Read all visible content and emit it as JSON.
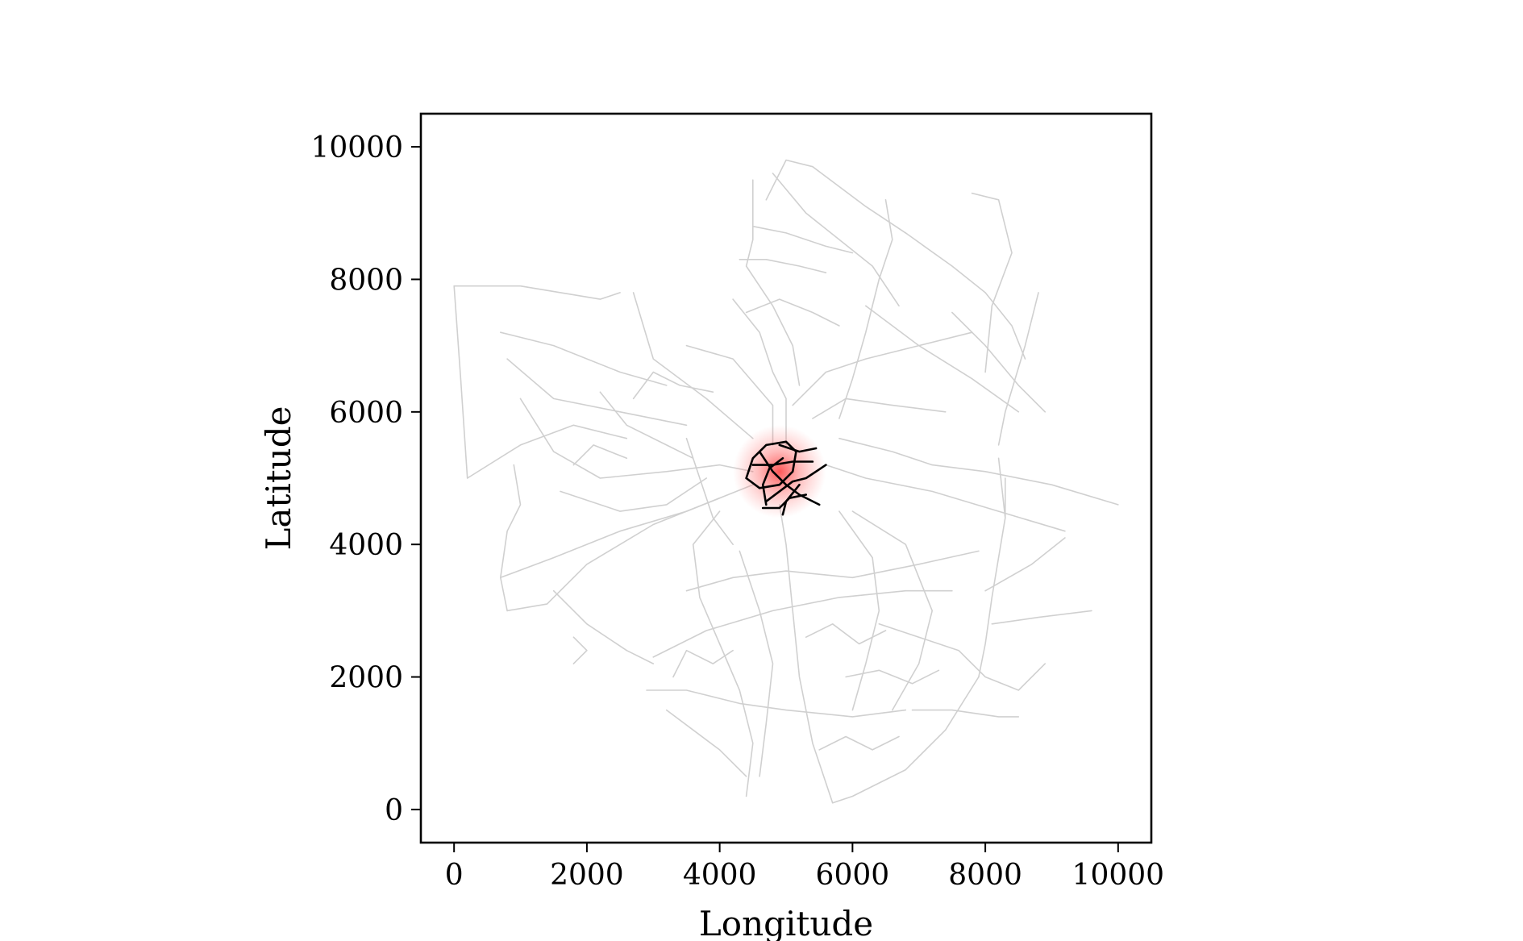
{
  "chart_data": {
    "type": "map",
    "xlabel": "Longitude",
    "ylabel": "Latitude",
    "xlim": [
      -500,
      10500
    ],
    "ylim": [
      -500,
      10500
    ],
    "x_ticks": [
      0,
      2000,
      4000,
      6000,
      8000,
      10000
    ],
    "y_ticks": [
      0,
      2000,
      4000,
      6000,
      8000,
      10000
    ],
    "x_tick_labels": [
      "0",
      "2000",
      "4000",
      "6000",
      "8000",
      "10000"
    ],
    "y_tick_labels": [
      "0",
      "2000",
      "4000",
      "6000",
      "8000",
      "10000"
    ],
    "grid": false,
    "colors": {
      "network": "#d0d0d0",
      "highlight": "#000000",
      "density": "#ff3030"
    },
    "density_center": [
      4900,
      5100
    ],
    "density_radius": 700,
    "network_lines": [
      [
        [
          0,
          7900
        ],
        [
          500,
          7900
        ],
        [
          1000,
          7900
        ],
        [
          2200,
          7700
        ],
        [
          2500,
          7800
        ]
      ],
      [
        [
          0,
          7900
        ],
        [
          100,
          6500
        ],
        [
          200,
          5000
        ]
      ],
      [
        [
          200,
          5000
        ],
        [
          1000,
          5500
        ],
        [
          1800,
          5800
        ],
        [
          2600,
          5600
        ]
      ],
      [
        [
          800,
          6800
        ],
        [
          1500,
          6200
        ],
        [
          2500,
          6000
        ],
        [
          3500,
          5800
        ]
      ],
      [
        [
          700,
          7200
        ],
        [
          1500,
          7000
        ],
        [
          2500,
          6600
        ],
        [
          3200,
          6400
        ]
      ],
      [
        [
          900,
          5200
        ],
        [
          1000,
          4600
        ],
        [
          800,
          4200
        ],
        [
          700,
          3500
        ],
        [
          800,
          3000
        ]
      ],
      [
        [
          800,
          3000
        ],
        [
          1400,
          3100
        ],
        [
          2000,
          3700
        ],
        [
          3000,
          4300
        ],
        [
          4000,
          4700
        ]
      ],
      [
        [
          700,
          3500
        ],
        [
          1500,
          3800
        ],
        [
          2500,
          4200
        ],
        [
          3500,
          4500
        ],
        [
          4500,
          4900
        ]
      ],
      [
        [
          1500,
          3300
        ],
        [
          2000,
          2800
        ],
        [
          2600,
          2400
        ],
        [
          3000,
          2200
        ]
      ],
      [
        [
          1800,
          2600
        ],
        [
          2000,
          2400
        ],
        [
          1800,
          2200
        ]
      ],
      [
        [
          2700,
          7800
        ],
        [
          3000,
          6800
        ],
        [
          3800,
          6200
        ],
        [
          4500,
          5600
        ]
      ],
      [
        [
          3500,
          7000
        ],
        [
          4200,
          6800
        ],
        [
          4800,
          6100
        ],
        [
          4800,
          5500
        ]
      ],
      [
        [
          4200,
          7700
        ],
        [
          4600,
          7200
        ],
        [
          4800,
          6600
        ],
        [
          5000,
          6200
        ],
        [
          5000,
          5500
        ]
      ],
      [
        [
          4500,
          9500
        ],
        [
          4500,
          8600
        ],
        [
          4400,
          8200
        ],
        [
          4800,
          7600
        ],
        [
          5100,
          7000
        ],
        [
          5200,
          6400
        ]
      ],
      [
        [
          4700,
          9200
        ],
        [
          5000,
          9800
        ],
        [
          5400,
          9700
        ],
        [
          6200,
          9100
        ],
        [
          6800,
          8700
        ]
      ],
      [
        [
          4800,
          9600
        ],
        [
          5300,
          9000
        ],
        [
          5800,
          8600
        ],
        [
          6300,
          8200
        ],
        [
          6700,
          7600
        ]
      ],
      [
        [
          6500,
          9200
        ],
        [
          6600,
          8600
        ],
        [
          6400,
          8000
        ],
        [
          6200,
          7200
        ],
        [
          6000,
          6500
        ],
        [
          5800,
          5900
        ]
      ],
      [
        [
          6800,
          8700
        ],
        [
          7500,
          8200
        ],
        [
          8000,
          7800
        ],
        [
          8400,
          7300
        ],
        [
          8600,
          6800
        ]
      ],
      [
        [
          7800,
          9300
        ],
        [
          8200,
          9200
        ],
        [
          8400,
          8400
        ],
        [
          8100,
          7600
        ],
        [
          8000,
          6600
        ]
      ],
      [
        [
          8200,
          5500
        ],
        [
          8300,
          6000
        ],
        [
          8600,
          7000
        ],
        [
          8800,
          7800
        ]
      ],
      [
        [
          7500,
          7500
        ],
        [
          8000,
          7000
        ],
        [
          8500,
          6400
        ],
        [
          8900,
          6000
        ]
      ],
      [
        [
          6200,
          7600
        ],
        [
          7000,
          7000
        ],
        [
          7800,
          6500
        ],
        [
          8500,
          6000
        ]
      ],
      [
        [
          5800,
          5600
        ],
        [
          6600,
          5400
        ],
        [
          7200,
          5200
        ],
        [
          8000,
          5100
        ],
        [
          9000,
          4900
        ],
        [
          10000,
          4600
        ]
      ],
      [
        [
          5600,
          5200
        ],
        [
          6200,
          5000
        ],
        [
          7200,
          4800
        ],
        [
          8200,
          4500
        ],
        [
          9200,
          4200
        ]
      ],
      [
        [
          8200,
          5300
        ],
        [
          8300,
          4400
        ],
        [
          8100,
          3200
        ],
        [
          8000,
          2500
        ],
        [
          7900,
          2000
        ]
      ],
      [
        [
          7900,
          2000
        ],
        [
          7400,
          1200
        ],
        [
          6800,
          600
        ],
        [
          6000,
          200
        ],
        [
          5700,
          100
        ]
      ],
      [
        [
          5700,
          100
        ],
        [
          5400,
          1000
        ],
        [
          5200,
          2000
        ],
        [
          5100,
          3000
        ],
        [
          5000,
          4000
        ],
        [
          4900,
          4600
        ]
      ],
      [
        [
          4400,
          200
        ],
        [
          4500,
          1000
        ],
        [
          4300,
          1800
        ],
        [
          4000,
          2500
        ],
        [
          3700,
          3200
        ],
        [
          3600,
          4000
        ],
        [
          4000,
          4500
        ]
      ],
      [
        [
          2900,
          1800
        ],
        [
          3500,
          1800
        ],
        [
          4300,
          1600
        ],
        [
          5000,
          1500
        ],
        [
          6000,
          1400
        ],
        [
          6800,
          1500
        ]
      ],
      [
        [
          3200,
          1500
        ],
        [
          3600,
          1200
        ],
        [
          4000,
          900
        ],
        [
          4400,
          500
        ]
      ],
      [
        [
          3000,
          2300
        ],
        [
          3800,
          2700
        ],
        [
          4800,
          3000
        ],
        [
          5800,
          3200
        ],
        [
          6800,
          3300
        ],
        [
          7500,
          3300
        ]
      ],
      [
        [
          3500,
          3300
        ],
        [
          4200,
          3500
        ],
        [
          5000,
          3600
        ],
        [
          6000,
          3500
        ],
        [
          7000,
          3700
        ],
        [
          7900,
          3900
        ]
      ],
      [
        [
          6000,
          4500
        ],
        [
          6800,
          4000
        ],
        [
          7200,
          3000
        ],
        [
          7000,
          2200
        ],
        [
          6600,
          1500
        ]
      ],
      [
        [
          5800,
          4500
        ],
        [
          6300,
          3800
        ],
        [
          6400,
          3000
        ],
        [
          6200,
          2200
        ],
        [
          6000,
          1500
        ]
      ],
      [
        [
          6400,
          2800
        ],
        [
          7000,
          2600
        ],
        [
          7600,
          2400
        ],
        [
          8000,
          2000
        ],
        [
          8500,
          1800
        ],
        [
          8900,
          2200
        ]
      ],
      [
        [
          8100,
          2800
        ],
        [
          8800,
          2900
        ],
        [
          9600,
          3000
        ]
      ],
      [
        [
          8000,
          3300
        ],
        [
          8700,
          3700
        ],
        [
          9200,
          4100
        ]
      ],
      [
        [
          6900,
          1500
        ],
        [
          7500,
          1500
        ],
        [
          8200,
          1400
        ],
        [
          8500,
          1400
        ]
      ],
      [
        [
          1000,
          6200
        ],
        [
          1500,
          5400
        ],
        [
          2200,
          5000
        ],
        [
          3200,
          5100
        ],
        [
          4000,
          5200
        ],
        [
          4500,
          5100
        ]
      ],
      [
        [
          1600,
          4800
        ],
        [
          2500,
          4500
        ],
        [
          3200,
          4600
        ],
        [
          3800,
          5000
        ]
      ],
      [
        [
          2200,
          6300
        ],
        [
          2600,
          5800
        ],
        [
          3200,
          5500
        ],
        [
          3600,
          5300
        ]
      ],
      [
        [
          3500,
          5600
        ],
        [
          3700,
          5000
        ],
        [
          3900,
          4400
        ],
        [
          4200,
          4000
        ]
      ],
      [
        [
          4300,
          3900
        ],
        [
          4600,
          3000
        ],
        [
          4800,
          2200
        ],
        [
          4700,
          1300
        ],
        [
          4600,
          500
        ]
      ],
      [
        [
          5100,
          6100
        ],
        [
          5600,
          6600
        ],
        [
          6200,
          6800
        ],
        [
          7000,
          7000
        ],
        [
          7800,
          7200
        ]
      ],
      [
        [
          5400,
          5900
        ],
        [
          5900,
          6200
        ],
        [
          6600,
          6100
        ],
        [
          7400,
          6000
        ]
      ],
      [
        [
          4300,
          8300
        ],
        [
          4700,
          8300
        ],
        [
          5200,
          8200
        ],
        [
          5600,
          8100
        ]
      ],
      [
        [
          4500,
          8800
        ],
        [
          5000,
          8700
        ],
        [
          5600,
          8500
        ],
        [
          6000,
          8400
        ]
      ],
      [
        [
          4400,
          7500
        ],
        [
          4900,
          7700
        ],
        [
          5400,
          7500
        ],
        [
          5800,
          7300
        ]
      ],
      [
        [
          2700,
          6200
        ],
        [
          3000,
          6600
        ],
        [
          3400,
          6400
        ],
        [
          3900,
          6300
        ]
      ],
      [
        [
          1800,
          5200
        ],
        [
          2100,
          5500
        ],
        [
          2600,
          5300
        ]
      ],
      [
        [
          3300,
          2000
        ],
        [
          3500,
          2400
        ],
        [
          3900,
          2200
        ],
        [
          4200,
          2400
        ]
      ],
      [
        [
          5300,
          2600
        ],
        [
          5700,
          2800
        ],
        [
          6100,
          2500
        ],
        [
          6500,
          2700
        ]
      ],
      [
        [
          5500,
          900
        ],
        [
          5900,
          1100
        ],
        [
          6300,
          900
        ],
        [
          6700,
          1100
        ]
      ],
      [
        [
          5900,
          2000
        ],
        [
          6400,
          2100
        ],
        [
          6900,
          1900
        ],
        [
          7300,
          2100
        ]
      ],
      [
        [
          8300,
          5000
        ],
        [
          8300,
          4400
        ]
      ]
    ],
    "highlight_lines": [
      [
        [
          4400,
          5000
        ],
        [
          4500,
          5300
        ],
        [
          4700,
          5500
        ],
        [
          5000,
          5550
        ],
        [
          5150,
          5400
        ],
        [
          5100,
          5100
        ],
        [
          4900,
          4900
        ],
        [
          4600,
          4850
        ],
        [
          4400,
          5000
        ]
      ],
      [
        [
          4500,
          5200
        ],
        [
          4800,
          5200
        ],
        [
          5100,
          5250
        ],
        [
          5400,
          5250
        ]
      ],
      [
        [
          4600,
          5400
        ],
        [
          4800,
          5100
        ],
        [
          5000,
          4900
        ],
        [
          5200,
          4750
        ],
        [
          5500,
          4600
        ]
      ],
      [
        [
          4700,
          4650
        ],
        [
          4900,
          4800
        ],
        [
          5100,
          4950
        ],
        [
          5300,
          5000
        ],
        [
          5600,
          5200
        ]
      ],
      [
        [
          4900,
          5500
        ],
        [
          5200,
          5400
        ],
        [
          5450,
          5450
        ]
      ],
      [
        [
          4700,
          4600
        ],
        [
          4650,
          4900
        ],
        [
          4750,
          5150
        ],
        [
          4950,
          5300
        ]
      ],
      [
        [
          4650,
          4550
        ],
        [
          4900,
          4550
        ],
        [
          5050,
          4700
        ],
        [
          5300,
          4750
        ]
      ],
      [
        [
          4950,
          4450
        ],
        [
          5000,
          4650
        ],
        [
          5200,
          4900
        ]
      ]
    ]
  }
}
